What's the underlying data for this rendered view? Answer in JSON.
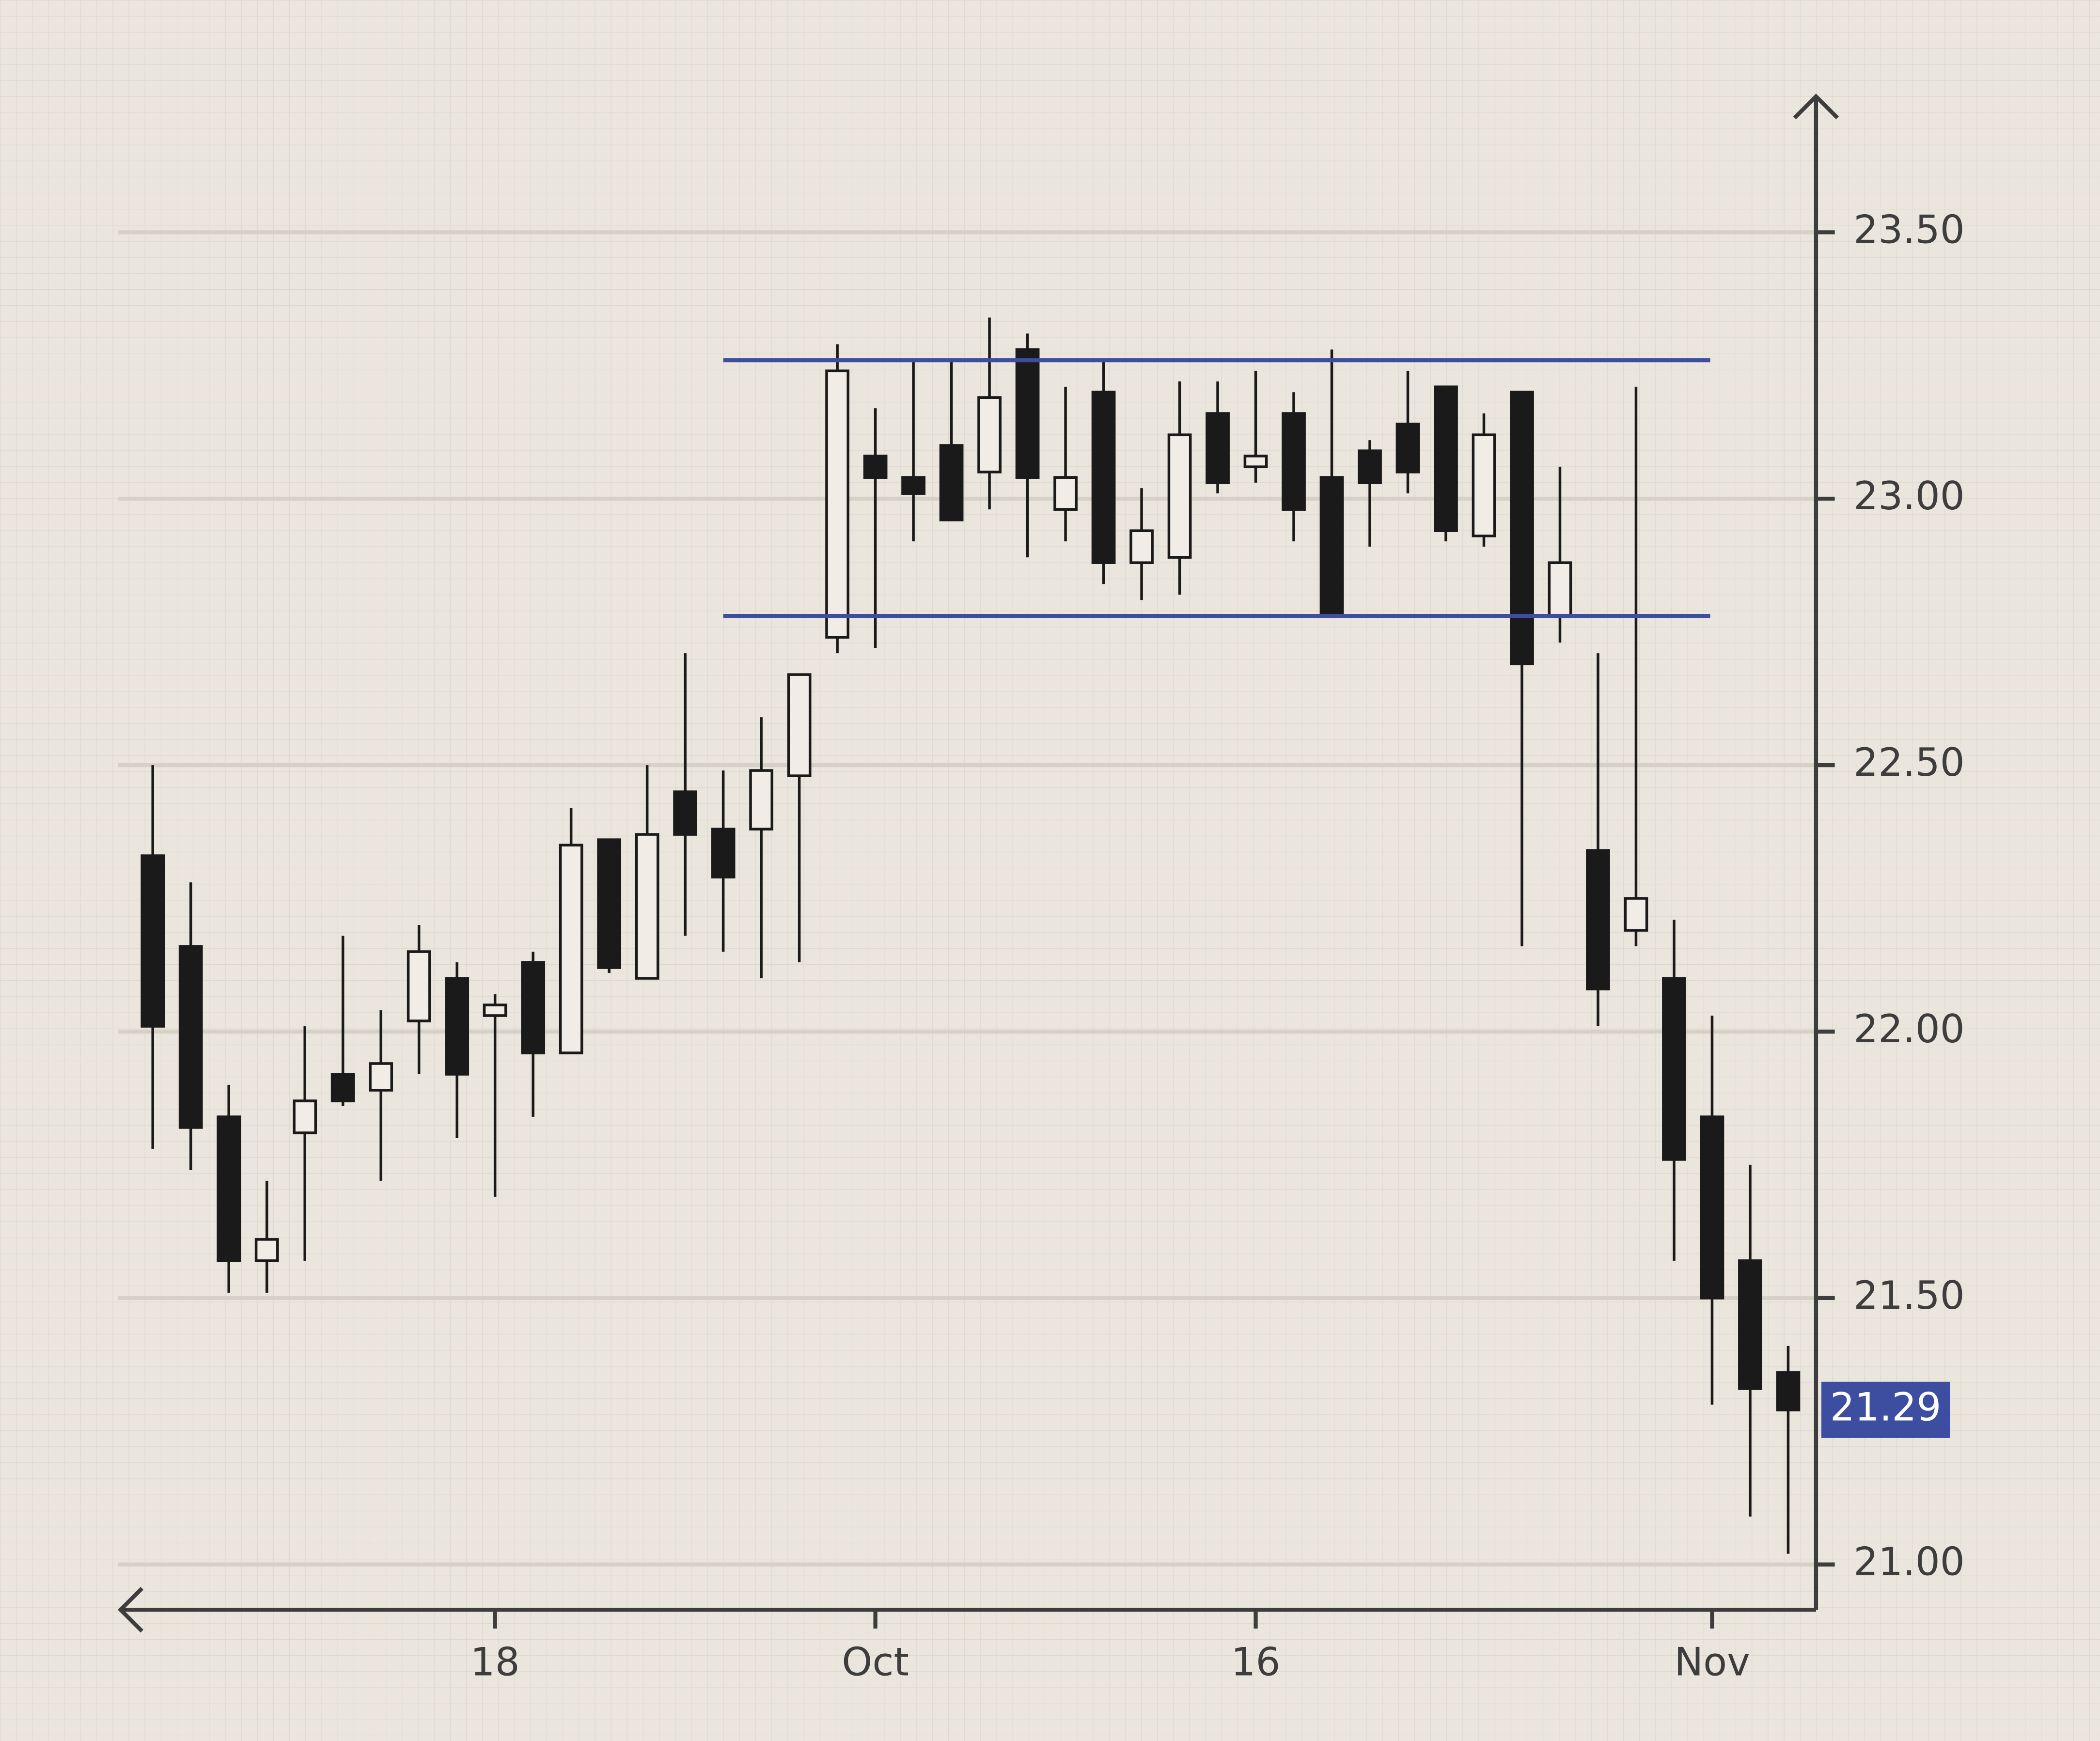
{
  "chart_data": {
    "type": "candlestick",
    "categories": [
      null,
      null,
      null,
      null,
      null,
      null,
      null,
      null,
      null,
      "18",
      null,
      null,
      null,
      null,
      null,
      null,
      null,
      null,
      null,
      "Oct",
      null,
      null,
      null,
      null,
      null,
      null,
      null,
      null,
      null,
      "16",
      null,
      null,
      null,
      null,
      null,
      null,
      null,
      null,
      null,
      null,
      null,
      "Nov",
      null,
      null
    ],
    "open": [
      22.33,
      22.16,
      21.84,
      21.57,
      21.81,
      21.92,
      21.89,
      22.02,
      22.1,
      22.03,
      22.13,
      21.96,
      22.36,
      22.1,
      22.45,
      22.38,
      22.38,
      22.48,
      22.74,
      23.08,
      23.04,
      23.1,
      23.05,
      23.28,
      22.98,
      23.2,
      22.88,
      22.89,
      23.16,
      23.06,
      23.16,
      23.04,
      23.09,
      23.14,
      23.21,
      22.93,
      23.2,
      22.78,
      22.34,
      22.19,
      22.1,
      21.84,
      21.57,
      21.36
    ],
    "high": [
      22.5,
      22.28,
      21.9,
      21.72,
      22.01,
      22.18,
      22.04,
      22.2,
      22.13,
      22.07,
      22.15,
      22.42,
      22.36,
      22.5,
      22.71,
      22.49,
      22.59,
      22.67,
      23.29,
      23.17,
      23.26,
      23.26,
      23.34,
      23.31,
      23.21,
      23.26,
      23.02,
      23.22,
      23.22,
      23.24,
      23.2,
      23.28,
      23.11,
      23.24,
      23.21,
      23.16,
      23.2,
      23.06,
      22.71,
      23.21,
      22.21,
      22.03,
      21.75,
      21.41
    ],
    "low": [
      21.78,
      21.74,
      21.51,
      21.51,
      21.57,
      21.86,
      21.72,
      21.92,
      21.8,
      21.69,
      21.84,
      21.96,
      22.11,
      22.1,
      22.18,
      22.15,
      22.1,
      22.13,
      22.71,
      22.72,
      22.92,
      22.96,
      22.98,
      22.89,
      22.92,
      22.84,
      22.81,
      22.82,
      23.01,
      23.03,
      22.92,
      22.78,
      22.91,
      23.01,
      22.92,
      22.91,
      22.16,
      22.73,
      22.01,
      22.16,
      21.57,
      21.3,
      21.09,
      21.02
    ],
    "close": [
      22.01,
      21.82,
      21.57,
      21.61,
      21.87,
      21.87,
      21.94,
      22.15,
      21.92,
      22.05,
      21.96,
      22.35,
      22.12,
      22.37,
      22.37,
      22.29,
      22.49,
      22.67,
      23.24,
      23.04,
      23.01,
      22.96,
      23.19,
      23.04,
      23.04,
      22.88,
      22.94,
      23.12,
      23.03,
      23.08,
      22.98,
      22.78,
      23.03,
      23.05,
      22.94,
      23.12,
      22.69,
      22.88,
      22.08,
      22.25,
      21.76,
      21.5,
      21.33,
      21.29
    ],
    "up_color": "#f1ede6",
    "down_color": "#1b1a1a",
    "hlines": [
      23.26,
      22.78
    ],
    "hline_color": "#3d4ea0",
    "last_price": 21.29,
    "last_price_color": "#3d4ea0",
    "ylim": [
      20.915,
      23.76
    ],
    "yticks": [
      {
        "value": 21,
        "label": "21.00"
      },
      {
        "value": 21.5,
        "label": "21.50"
      },
      {
        "value": 22,
        "label": "22.00"
      },
      {
        "value": 22.5,
        "label": "22.50"
      },
      {
        "value": 23,
        "label": "23.00"
      },
      {
        "value": 23.5,
        "label": "23.50"
      }
    ],
    "grid": true
  }
}
